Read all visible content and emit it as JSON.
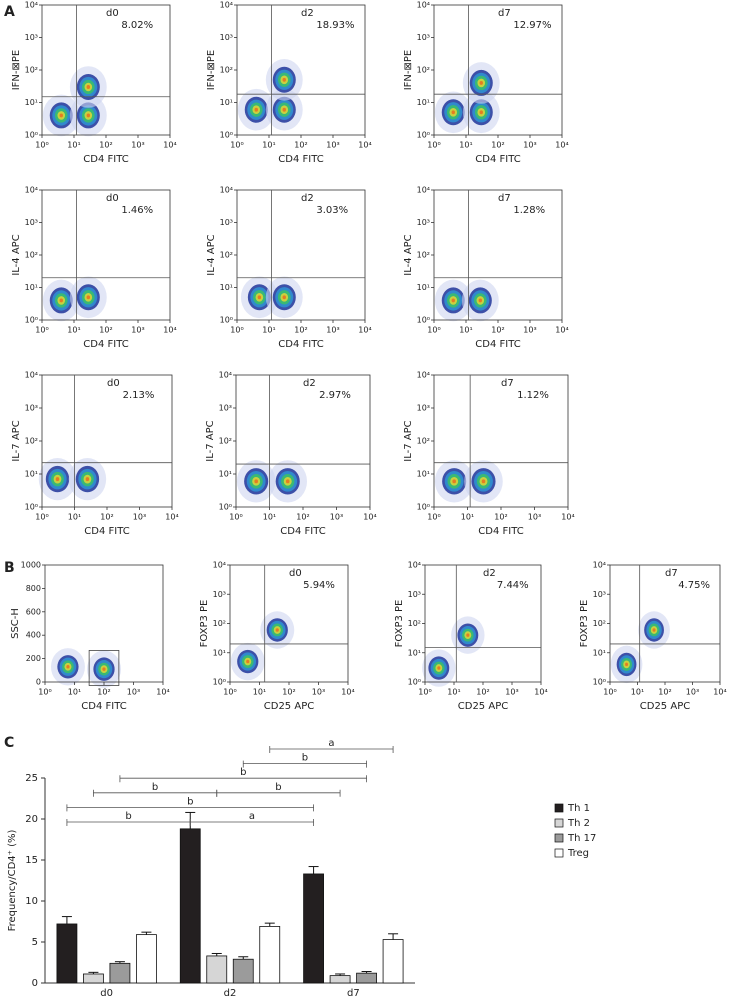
{
  "panel_labels": [
    "A",
    "B",
    "C"
  ],
  "chart_data": [
    {
      "type": "flow",
      "label": "d0",
      "quadrant_label": "8.02%",
      "xlabel": "CD4 FITC",
      "ylabel": "IFN-⊠PE",
      "xscale": "log",
      "yscale": "log",
      "xlim": [
        1,
        10000
      ],
      "ylim": [
        1,
        10000
      ],
      "xticks": [
        {
          "value": 1,
          "label": "10⁰"
        },
        {
          "value": 10,
          "label": "10¹"
        },
        {
          "value": 100,
          "label": "10²"
        },
        {
          "value": 1000,
          "label": "10³"
        },
        {
          "value": 10000,
          "label": "10⁴"
        }
      ],
      "yticks": [
        {
          "value": 1,
          "label": "10⁰"
        },
        {
          "value": 10,
          "label": "10¹"
        },
        {
          "value": 100,
          "label": "10²"
        },
        {
          "value": 1000,
          "label": "10³"
        },
        {
          "value": 10000,
          "label": "10⁴"
        }
      ],
      "quadrant": {
        "x": 12,
        "y": 15
      },
      "populations": [
        {
          "x": 4,
          "y": 4
        },
        {
          "x": 28,
          "y": 4
        },
        {
          "x": 28,
          "y": 30
        }
      ]
    },
    {
      "type": "flow",
      "label": "d2",
      "quadrant_label": "18.93%",
      "xlabel": "CD4 FITC",
      "ylabel": "IFN-⊠PE",
      "xscale": "log",
      "yscale": "log",
      "xlim": [
        1,
        10000
      ],
      "ylim": [
        1,
        10000
      ],
      "xticks": [
        {
          "value": 1,
          "label": "10⁰"
        },
        {
          "value": 10,
          "label": "10¹"
        },
        {
          "value": 100,
          "label": "10²"
        },
        {
          "value": 1000,
          "label": "10³"
        },
        {
          "value": 10000,
          "label": "10⁴"
        }
      ],
      "yticks": [
        {
          "value": 1,
          "label": "10⁰"
        },
        {
          "value": 10,
          "label": "10¹"
        },
        {
          "value": 100,
          "label": "10²"
        },
        {
          "value": 1000,
          "label": "10³"
        },
        {
          "value": 10000,
          "label": "10⁴"
        }
      ],
      "quadrant": {
        "x": 12,
        "y": 18
      },
      "populations": [
        {
          "x": 4,
          "y": 6
        },
        {
          "x": 30,
          "y": 6
        },
        {
          "x": 30,
          "y": 50
        }
      ]
    },
    {
      "type": "flow",
      "label": "d7",
      "quadrant_label": "12.97%",
      "xlabel": "CD4 FITC",
      "ylabel": "IFN-⊠PE",
      "xscale": "log",
      "yscale": "log",
      "xlim": [
        1,
        10000
      ],
      "ylim": [
        1,
        10000
      ],
      "xticks": [
        {
          "value": 1,
          "label": "10⁰"
        },
        {
          "value": 10,
          "label": "10¹"
        },
        {
          "value": 100,
          "label": "10²"
        },
        {
          "value": 1000,
          "label": "10³"
        },
        {
          "value": 10000,
          "label": "10⁴"
        }
      ],
      "yticks": [
        {
          "value": 1,
          "label": "10⁰"
        },
        {
          "value": 10,
          "label": "10¹"
        },
        {
          "value": 100,
          "label": "10²"
        },
        {
          "value": 1000,
          "label": "10³"
        },
        {
          "value": 10000,
          "label": "10⁴"
        }
      ],
      "quadrant": {
        "x": 12,
        "y": 18
      },
      "populations": [
        {
          "x": 4,
          "y": 5
        },
        {
          "x": 30,
          "y": 5
        },
        {
          "x": 30,
          "y": 40
        }
      ]
    },
    {
      "type": "flow",
      "label": "d0",
      "quadrant_label": "1.46%",
      "xlabel": "CD4 FITC",
      "ylabel": "IL-4 APC",
      "xscale": "log",
      "yscale": "log",
      "xlim": [
        1,
        10000
      ],
      "ylim": [
        1,
        10000
      ],
      "xticks": [
        {
          "value": 1,
          "label": "10⁰"
        },
        {
          "value": 10,
          "label": "10¹"
        },
        {
          "value": 100,
          "label": "10²"
        },
        {
          "value": 1000,
          "label": "10³"
        },
        {
          "value": 10000,
          "label": "10⁴"
        }
      ],
      "yticks": [
        {
          "value": 1,
          "label": "10⁰"
        },
        {
          "value": 10,
          "label": "10¹"
        },
        {
          "value": 100,
          "label": "10²"
        },
        {
          "value": 1000,
          "label": "10³"
        },
        {
          "value": 10000,
          "label": "10⁴"
        }
      ],
      "quadrant": {
        "x": 12,
        "y": 20
      },
      "populations": [
        {
          "x": 4,
          "y": 4
        },
        {
          "x": 28,
          "y": 5
        }
      ]
    },
    {
      "type": "flow",
      "label": "d2",
      "quadrant_label": "3.03%",
      "xlabel": "CD4 FITC",
      "ylabel": "IL-4 APC",
      "xscale": "log",
      "yscale": "log",
      "xlim": [
        1,
        10000
      ],
      "ylim": [
        1,
        10000
      ],
      "xticks": [
        {
          "value": 1,
          "label": "10⁰"
        },
        {
          "value": 10,
          "label": "10¹"
        },
        {
          "value": 100,
          "label": "10²"
        },
        {
          "value": 1000,
          "label": "10³"
        },
        {
          "value": 10000,
          "label": "10⁴"
        }
      ],
      "yticks": [
        {
          "value": 1,
          "label": "10⁰"
        },
        {
          "value": 10,
          "label": "10¹"
        },
        {
          "value": 100,
          "label": "10²"
        },
        {
          "value": 1000,
          "label": "10³"
        },
        {
          "value": 10000,
          "label": "10⁴"
        }
      ],
      "quadrant": {
        "x": 12,
        "y": 20
      },
      "populations": [
        {
          "x": 5,
          "y": 5
        },
        {
          "x": 30,
          "y": 5
        }
      ]
    },
    {
      "type": "flow",
      "label": "d7",
      "quadrant_label": "1.28%",
      "xlabel": "CD4 FITC",
      "ylabel": "IL-4 APC",
      "xscale": "log",
      "yscale": "log",
      "xlim": [
        1,
        10000
      ],
      "ylim": [
        1,
        10000
      ],
      "xticks": [
        {
          "value": 1,
          "label": "10⁰"
        },
        {
          "value": 10,
          "label": "10¹"
        },
        {
          "value": 100,
          "label": "10²"
        },
        {
          "value": 1000,
          "label": "10³"
        },
        {
          "value": 10000,
          "label": "10⁴"
        }
      ],
      "yticks": [
        {
          "value": 1,
          "label": "10⁰"
        },
        {
          "value": 10,
          "label": "10¹"
        },
        {
          "value": 100,
          "label": "10²"
        },
        {
          "value": 1000,
          "label": "10³"
        },
        {
          "value": 10000,
          "label": "10⁴"
        }
      ],
      "quadrant": {
        "x": 12,
        "y": 20
      },
      "populations": [
        {
          "x": 4,
          "y": 4
        },
        {
          "x": 28,
          "y": 4
        }
      ]
    },
    {
      "type": "flow",
      "label": "d0",
      "quadrant_label": "2.13%",
      "xlabel": "CD4 FITC",
      "ylabel": "IL-7 APC",
      "xscale": "log",
      "yscale": "log",
      "xlim": [
        1,
        10000
      ],
      "ylim": [
        1,
        10000
      ],
      "xticks": [
        {
          "value": 1,
          "label": "10⁰"
        },
        {
          "value": 10,
          "label": "10¹"
        },
        {
          "value": 100,
          "label": "10²"
        },
        {
          "value": 1000,
          "label": "10³"
        },
        {
          "value": 10000,
          "label": "10⁴"
        }
      ],
      "yticks": [
        {
          "value": 1,
          "label": "10⁰"
        },
        {
          "value": 10,
          "label": "10¹"
        },
        {
          "value": 100,
          "label": "10²"
        },
        {
          "value": 1000,
          "label": "10³"
        },
        {
          "value": 10000,
          "label": "10⁴"
        }
      ],
      "quadrant": {
        "x": 10,
        "y": 22
      },
      "populations": [
        {
          "x": 3,
          "y": 7
        },
        {
          "x": 25,
          "y": 7
        }
      ]
    },
    {
      "type": "flow",
      "label": "d2",
      "quadrant_label": "2.97%",
      "xlabel": "CD4 FITC",
      "ylabel": "IL-7 APC",
      "xscale": "log",
      "yscale": "log",
      "xlim": [
        1,
        10000
      ],
      "ylim": [
        1,
        10000
      ],
      "xticks": [
        {
          "value": 1,
          "label": "10⁰"
        },
        {
          "value": 10,
          "label": "10¹"
        },
        {
          "value": 100,
          "label": "10²"
        },
        {
          "value": 1000,
          "label": "10³"
        },
        {
          "value": 10000,
          "label": "10⁴"
        }
      ],
      "yticks": [
        {
          "value": 1,
          "label": "10⁰"
        },
        {
          "value": 10,
          "label": "10¹"
        },
        {
          "value": 100,
          "label": "10²"
        },
        {
          "value": 1000,
          "label": "10³"
        },
        {
          "value": 10000,
          "label": "10⁴"
        }
      ],
      "quadrant": {
        "x": 10,
        "y": 20
      },
      "populations": [
        {
          "x": 4,
          "y": 6
        },
        {
          "x": 35,
          "y": 6
        }
      ]
    },
    {
      "type": "flow",
      "label": "d7",
      "quadrant_label": "1.12%",
      "xlabel": "CD4 FITC",
      "ylabel": "IL-7 APC",
      "xscale": "log",
      "yscale": "log",
      "xlim": [
        1,
        10000
      ],
      "ylim": [
        1,
        10000
      ],
      "xticks": [
        {
          "value": 1,
          "label": "10⁰"
        },
        {
          "value": 10,
          "label": "10¹"
        },
        {
          "value": 100,
          "label": "10²"
        },
        {
          "value": 1000,
          "label": "10³"
        },
        {
          "value": 10000,
          "label": "10⁴"
        }
      ],
      "yticks": [
        {
          "value": 1,
          "label": "10⁰"
        },
        {
          "value": 10,
          "label": "10¹"
        },
        {
          "value": 100,
          "label": "10²"
        },
        {
          "value": 1000,
          "label": "10³"
        },
        {
          "value": 10000,
          "label": "10⁴"
        }
      ],
      "quadrant": {
        "x": 12,
        "y": 22
      },
      "populations": [
        {
          "x": 4,
          "y": 6
        },
        {
          "x": 30,
          "y": 6
        }
      ]
    },
    {
      "type": "flow",
      "xlabel": "CD4 FITC",
      "ylabel": "SSC-H",
      "xscale": "log",
      "yscale": "linear",
      "xlim": [
        1,
        10000
      ],
      "ylim": [
        0,
        1000
      ],
      "xticks": [
        {
          "value": 1,
          "label": "10⁰"
        },
        {
          "value": 10,
          "label": "10¹"
        },
        {
          "value": 100,
          "label": "10²"
        },
        {
          "value": 1000,
          "label": "10³"
        },
        {
          "value": 10000,
          "label": "10⁴"
        }
      ],
      "yticks": [
        0,
        200,
        400,
        600,
        800,
        1000
      ],
      "gate": true,
      "populations": [
        {
          "x": 6,
          "y": 130
        },
        {
          "x": 100,
          "y": 110
        }
      ]
    },
    {
      "type": "flow",
      "label": "d0",
      "quadrant_label": "5.94%",
      "xlabel": "CD25 APC",
      "ylabel": "FOXP3 PE",
      "xscale": "log",
      "yscale": "log",
      "xlim": [
        1,
        10000
      ],
      "ylim": [
        1,
        10000
      ],
      "xticks": [
        {
          "value": 1,
          "label": "10⁰"
        },
        {
          "value": 10,
          "label": "10¹"
        },
        {
          "value": 100,
          "label": "10²"
        },
        {
          "value": 1000,
          "label": "10³"
        },
        {
          "value": 10000,
          "label": "10⁴"
        }
      ],
      "yticks": [
        {
          "value": 1,
          "label": "10⁰"
        },
        {
          "value": 10,
          "label": "10¹"
        },
        {
          "value": 100,
          "label": "10²"
        },
        {
          "value": 1000,
          "label": "10³"
        },
        {
          "value": 10000,
          "label": "10⁴"
        }
      ],
      "quadrant": {
        "x": 15,
        "y": 20
      },
      "populations": [
        {
          "x": 4,
          "y": 5
        },
        {
          "x": 40,
          "y": 60
        }
      ]
    },
    {
      "type": "flow",
      "label": "d2",
      "quadrant_label": "7.44%",
      "xlabel": "CD25 APC",
      "ylabel": "FOXP3 PE",
      "xscale": "log",
      "yscale": "log",
      "xlim": [
        1,
        10000
      ],
      "ylim": [
        1,
        10000
      ],
      "xticks": [
        {
          "value": 1,
          "label": "10⁰"
        },
        {
          "value": 10,
          "label": "10¹"
        },
        {
          "value": 100,
          "label": "10²"
        },
        {
          "value": 1000,
          "label": "10³"
        },
        {
          "value": 10000,
          "label": "10⁴"
        }
      ],
      "yticks": [
        {
          "value": 1,
          "label": "10⁰"
        },
        {
          "value": 10,
          "label": "10¹"
        },
        {
          "value": 100,
          "label": "10²"
        },
        {
          "value": 1000,
          "label": "10³"
        },
        {
          "value": 10000,
          "label": "10⁴"
        }
      ],
      "quadrant": {
        "x": 12,
        "y": 15
      },
      "populations": [
        {
          "x": 3,
          "y": 3
        },
        {
          "x": 30,
          "y": 40
        }
      ]
    },
    {
      "type": "flow",
      "label": "d7",
      "quadrant_label": "4.75%",
      "xlabel": "CD25 APC",
      "ylabel": "FOXP3 PE",
      "xscale": "log",
      "yscale": "log",
      "xlim": [
        1,
        10000
      ],
      "ylim": [
        1,
        10000
      ],
      "xticks": [
        {
          "value": 1,
          "label": "10⁰"
        },
        {
          "value": 10,
          "label": "10¹"
        },
        {
          "value": 100,
          "label": "10²"
        },
        {
          "value": 1000,
          "label": "10³"
        },
        {
          "value": 10000,
          "label": "10⁴"
        }
      ],
      "yticks": [
        {
          "value": 1,
          "label": "10⁰"
        },
        {
          "value": 10,
          "label": "10¹"
        },
        {
          "value": 100,
          "label": "10²"
        },
        {
          "value": 1000,
          "label": "10³"
        },
        {
          "value": 10000,
          "label": "10⁴"
        }
      ],
      "quadrant": {
        "x": 12,
        "y": 20
      },
      "populations": [
        {
          "x": 4,
          "y": 4
        },
        {
          "x": 40,
          "y": 60
        }
      ]
    },
    {
      "type": "bar",
      "ylabel": "Frequency/CD4⁺ (%)",
      "categories": [
        "d0",
        "d2",
        "d7"
      ],
      "series": [
        {
          "name": "Th 1",
          "color": "#231f20",
          "values": [
            7.2,
            18.8,
            13.3
          ],
          "errors": [
            0.9,
            2.0,
            0.9
          ]
        },
        {
          "name": "Th 2",
          "color": "#d6d6d6",
          "values": [
            1.1,
            3.3,
            0.9
          ],
          "errors": [
            0.2,
            0.3,
            0.2
          ]
        },
        {
          "name": "Th 17",
          "color": "#9b9b9b",
          "values": [
            2.4,
            2.9,
            1.2
          ],
          "errors": [
            0.2,
            0.3,
            0.2
          ]
        },
        {
          "name": "Treg",
          "color": "#ffffff",
          "values": [
            5.9,
            6.9,
            5.3
          ],
          "errors": [
            0.3,
            0.4,
            0.7
          ]
        }
      ],
      "ylim": [
        0,
        25
      ],
      "yticks": [
        0,
        5,
        10,
        15,
        20,
        25
      ],
      "legend": "right",
      "brackets": [
        [
          {
            "from": [
              0,
              0
            ],
            "to": [
              0,
              1
            ],
            "label": "b"
          },
          {
            "from": [
              0,
              1
            ],
            "to": [
              0,
              2
            ],
            "label": "a"
          }
        ],
        [
          {
            "from": [
              0,
              0
            ],
            "to": [
              0,
              2
            ],
            "label": "b"
          }
        ],
        [
          {
            "from": [
              1,
              0
            ],
            "to": [
              1,
              1
            ],
            "label": "b"
          },
          {
            "from": [
              1,
              1
            ],
            "to": [
              1,
              2
            ],
            "label": "b"
          }
        ],
        [
          {
            "from": [
              2,
              0
            ],
            "to": [
              2,
              2
            ],
            "label": "b"
          }
        ],
        [
          {
            "from": [
              2,
              1
            ],
            "to": [
              2,
              2
            ],
            "label": "b"
          }
        ],
        [
          {
            "from": [
              3,
              1
            ],
            "to": [
              3,
              2
            ],
            "label": "a"
          }
        ]
      ]
    }
  ]
}
